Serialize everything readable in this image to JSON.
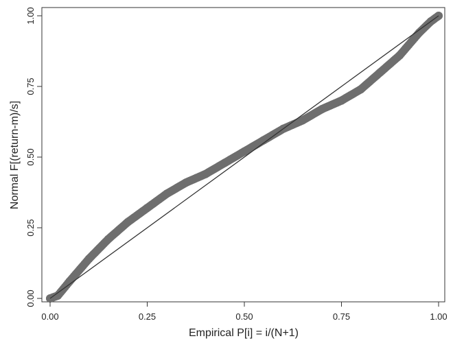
{
  "chart_data": {
    "type": "scatter",
    "xlabel": "Empirical P[i] = i/(N+1)",
    "ylabel": "Normal F[(return-m)/s]",
    "xlim": [
      0,
      1
    ],
    "ylim": [
      0,
      1
    ],
    "xticks": [
      {
        "value": 0,
        "label": "0.00"
      },
      {
        "value": 0.25,
        "label": "0.25"
      },
      {
        "value": 0.5,
        "label": "0.50"
      },
      {
        "value": 0.75,
        "label": "0.75"
      },
      {
        "value": 1,
        "label": "1.00"
      }
    ],
    "yticks": [
      {
        "value": 0,
        "label": "0.00"
      },
      {
        "value": 0.25,
        "label": "0.25"
      },
      {
        "value": 0.5,
        "label": "0.50"
      },
      {
        "value": 0.75,
        "label": "0.75"
      },
      {
        "value": 1,
        "label": "1.00"
      }
    ],
    "grid": false,
    "legend": "none",
    "series": [
      {
        "kind": "points",
        "color": "#6e6e6e",
        "x": [
          0.0,
          0.02,
          0.05,
          0.1,
          0.15,
          0.2,
          0.25,
          0.3,
          0.35,
          0.4,
          0.45,
          0.5,
          0.55,
          0.6,
          0.65,
          0.7,
          0.75,
          0.8,
          0.85,
          0.9,
          0.95,
          0.98,
          1.0
        ],
        "y": [
          0.0,
          0.01,
          0.06,
          0.14,
          0.21,
          0.27,
          0.32,
          0.37,
          0.41,
          0.44,
          0.48,
          0.52,
          0.56,
          0.6,
          0.63,
          0.67,
          0.7,
          0.74,
          0.8,
          0.86,
          0.94,
          0.98,
          1.0
        ]
      },
      {
        "kind": "reference-line",
        "color": "#333333",
        "x": [
          0,
          1
        ],
        "y": [
          0,
          1
        ]
      }
    ]
  }
}
